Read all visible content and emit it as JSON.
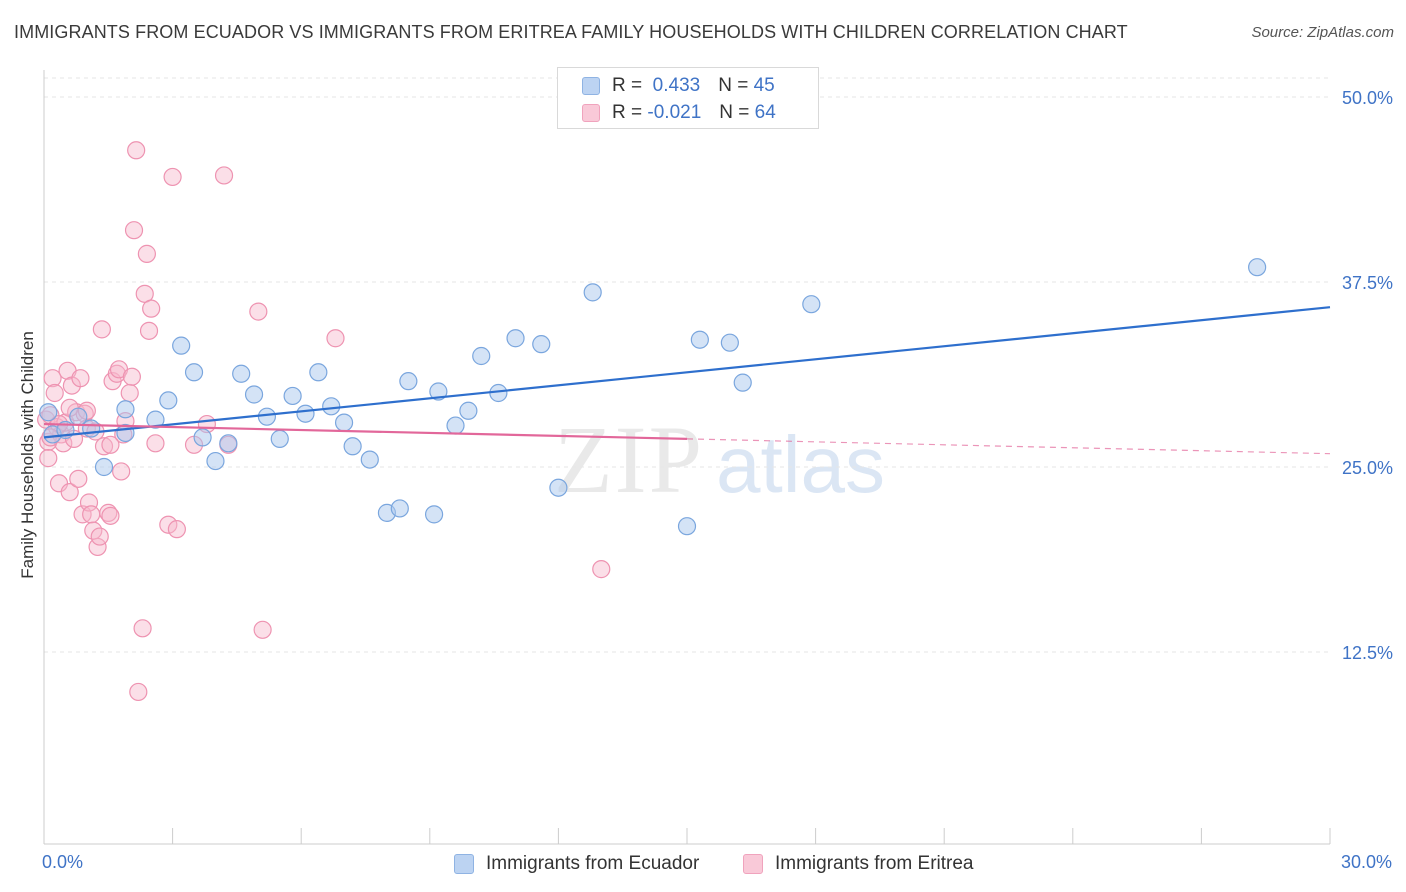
{
  "title": "IMMIGRANTS FROM ECUADOR VS IMMIGRANTS FROM ERITREA FAMILY HOUSEHOLDS WITH CHILDREN CORRELATION CHART",
  "source": "Source: ZipAtlas.com",
  "watermark": {
    "part1": "ZIP",
    "part2": "atlas"
  },
  "colors": {
    "ecuador_fill": "#a9c7ee",
    "ecuador_stroke": "#7aa6de",
    "ecuador_line": "#2e6fcd",
    "eritrea_fill": "#f7b8cc",
    "eritrea_stroke": "#ee93b1",
    "eritrea_line": "#e2679a",
    "tick_text": "#3f73c6",
    "grid": "#e6e6e6"
  },
  "legend": {
    "row1": {
      "r_label": "R =",
      "r_value": "0.433",
      "n_label": "N =",
      "n_value": "45"
    },
    "row2": {
      "r_label": "R =",
      "r_value": "-0.021",
      "n_label": "N =",
      "n_value": "64"
    }
  },
  "chart_data": {
    "type": "scatter",
    "title": "IMMIGRANTS FROM ECUADOR VS IMMIGRANTS FROM ERITREA FAMILY HOUSEHOLDS WITH CHILDREN CORRELATION CHART",
    "xlabel": "",
    "ylabel": "Family Households with Children",
    "xlim": [
      0,
      30
    ],
    "ylim": [
      0,
      52
    ],
    "x_tick_labels": [
      "0.0%",
      "30.0%"
    ],
    "y_ticks": [
      12.5,
      25.0,
      37.5,
      50.0
    ],
    "y_tick_labels": [
      "12.5%",
      "25.0%",
      "37.5%",
      "50.0%"
    ],
    "grid": true,
    "legend_position": "top-center",
    "series": [
      {
        "name": "Immigrants from Ecuador",
        "R": 0.433,
        "N": 45,
        "trend": {
          "x": [
            0.0,
            30.0
          ],
          "y": [
            27.0,
            35.8
          ],
          "dashed_from": null
        },
        "points": [
          [
            0.1,
            28.7
          ],
          [
            0.2,
            27.2
          ],
          [
            0.5,
            27.5
          ],
          [
            0.8,
            28.4
          ],
          [
            1.1,
            27.6
          ],
          [
            1.4,
            25.0
          ],
          [
            1.9,
            28.9
          ],
          [
            1.9,
            27.3
          ],
          [
            2.6,
            28.2
          ],
          [
            2.9,
            29.5
          ],
          [
            3.2,
            33.2
          ],
          [
            3.5,
            31.4
          ],
          [
            3.7,
            27.0
          ],
          [
            4.0,
            25.4
          ],
          [
            4.3,
            26.6
          ],
          [
            4.6,
            31.3
          ],
          [
            4.9,
            29.9
          ],
          [
            5.2,
            28.4
          ],
          [
            5.5,
            26.9
          ],
          [
            5.8,
            29.8
          ],
          [
            6.1,
            28.6
          ],
          [
            6.4,
            31.4
          ],
          [
            6.7,
            29.1
          ],
          [
            7.0,
            28.0
          ],
          [
            7.2,
            26.4
          ],
          [
            7.6,
            25.5
          ],
          [
            8.0,
            21.9
          ],
          [
            8.3,
            22.2
          ],
          [
            8.5,
            30.8
          ],
          [
            9.1,
            21.8
          ],
          [
            9.2,
            30.1
          ],
          [
            9.6,
            27.8
          ],
          [
            9.9,
            28.8
          ],
          [
            10.2,
            32.5
          ],
          [
            10.6,
            30.0
          ],
          [
            11.0,
            33.7
          ],
          [
            11.6,
            33.3
          ],
          [
            12.0,
            23.6
          ],
          [
            12.8,
            36.8
          ],
          [
            15.0,
            21.0
          ],
          [
            15.3,
            33.6
          ],
          [
            16.0,
            33.4
          ],
          [
            16.3,
            30.7
          ],
          [
            17.9,
            36.0
          ],
          [
            28.3,
            38.5
          ]
        ]
      },
      {
        "name": "Immigrants from Eritrea",
        "R": -0.021,
        "N": 64,
        "trend": {
          "x": [
            0.0,
            30.0
          ],
          "y": [
            27.9,
            25.9
          ],
          "dashed_from": 15.0
        },
        "points": [
          [
            0.05,
            28.2
          ],
          [
            0.1,
            26.7
          ],
          [
            0.1,
            25.6
          ],
          [
            0.15,
            28.5
          ],
          [
            0.2,
            31.0
          ],
          [
            0.25,
            30.0
          ],
          [
            0.3,
            27.7
          ],
          [
            0.35,
            23.9
          ],
          [
            0.4,
            27.2
          ],
          [
            0.45,
            26.6
          ],
          [
            0.5,
            28.0
          ],
          [
            0.55,
            31.5
          ],
          [
            0.6,
            23.3
          ],
          [
            0.65,
            30.5
          ],
          [
            0.7,
            26.9
          ],
          [
            0.75,
            28.7
          ],
          [
            0.8,
            24.2
          ],
          [
            0.85,
            31.0
          ],
          [
            0.9,
            21.8
          ],
          [
            0.95,
            28.6
          ],
          [
            1.0,
            27.6
          ],
          [
            1.05,
            22.6
          ],
          [
            1.1,
            21.8
          ],
          [
            1.15,
            20.7
          ],
          [
            1.2,
            27.4
          ],
          [
            1.25,
            19.6
          ],
          [
            1.3,
            20.3
          ],
          [
            1.35,
            34.3
          ],
          [
            1.4,
            26.4
          ],
          [
            1.5,
            21.9
          ],
          [
            1.55,
            21.7
          ],
          [
            1.6,
            30.8
          ],
          [
            1.7,
            31.3
          ],
          [
            1.75,
            31.6
          ],
          [
            1.8,
            24.7
          ],
          [
            1.85,
            27.2
          ],
          [
            1.9,
            28.1
          ],
          [
            2.0,
            30.0
          ],
          [
            2.05,
            31.1
          ],
          [
            2.1,
            41.0
          ],
          [
            2.15,
            46.4
          ],
          [
            2.2,
            9.8
          ],
          [
            2.3,
            14.1
          ],
          [
            2.35,
            36.7
          ],
          [
            2.4,
            39.4
          ],
          [
            2.45,
            34.2
          ],
          [
            2.5,
            35.7
          ],
          [
            2.6,
            26.6
          ],
          [
            2.9,
            21.1
          ],
          [
            3.0,
            44.6
          ],
          [
            3.1,
            20.8
          ],
          [
            3.5,
            26.5
          ],
          [
            3.8,
            27.9
          ],
          [
            4.2,
            44.7
          ],
          [
            4.3,
            26.5
          ],
          [
            5.0,
            35.5
          ],
          [
            5.1,
            14.0
          ],
          [
            6.8,
            33.7
          ],
          [
            13.0,
            18.1
          ],
          [
            0.6,
            29.0
          ],
          [
            1.0,
            28.8
          ],
          [
            0.35,
            27.9
          ],
          [
            0.15,
            27.0
          ],
          [
            1.55,
            26.5
          ]
        ]
      }
    ]
  },
  "bottom_legend": {
    "ecuador_label": "Immigrants from Ecuador",
    "eritrea_label": "Immigrants from Eritrea"
  }
}
